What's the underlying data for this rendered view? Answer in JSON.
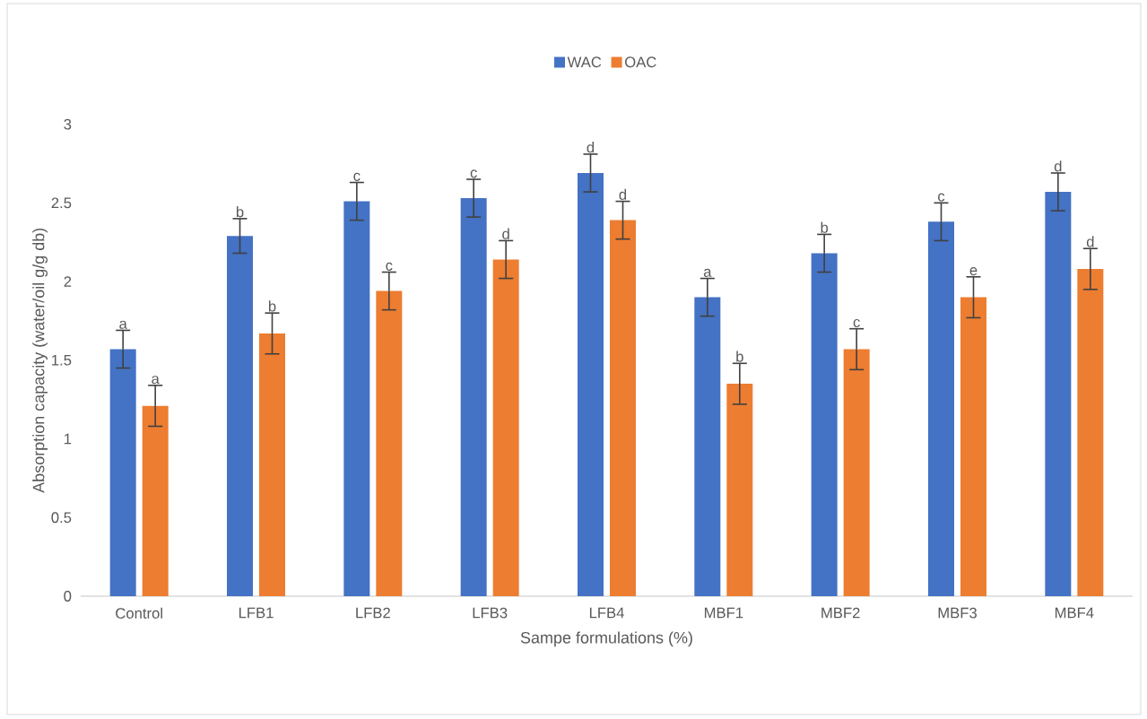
{
  "chart_data": {
    "type": "bar",
    "xlabel": "Sampe formulations (%)",
    "ylabel": "Absorption capacity (water/oil g/g db)",
    "categories": [
      "Control",
      "LFB1",
      "LFB2",
      "LFB3",
      "LFB4",
      "MBF1",
      "MBF2",
      "MBF3",
      "MBF4"
    ],
    "series": [
      {
        "name": "WAC",
        "color": "#4472c4",
        "values": [
          1.57,
          2.29,
          2.51,
          2.53,
          2.69,
          1.9,
          2.18,
          2.38,
          2.57
        ],
        "errors": [
          0.12,
          0.11,
          0.12,
          0.12,
          0.12,
          0.12,
          0.12,
          0.12,
          0.12
        ],
        "value_labels": [
          "a",
          "b",
          "c",
          "c",
          "d",
          "a",
          "b",
          "c",
          "d"
        ]
      },
      {
        "name": "OAC",
        "color": "#ed7d31",
        "values": [
          1.21,
          1.67,
          1.94,
          2.14,
          2.39,
          1.35,
          1.57,
          1.9,
          2.08
        ],
        "errors": [
          0.13,
          0.13,
          0.12,
          0.12,
          0.12,
          0.13,
          0.13,
          0.13,
          0.13
        ],
        "value_labels": [
          "a",
          "b",
          "c",
          "d",
          "d",
          "b",
          "c",
          "e",
          "d"
        ]
      }
    ],
    "ylim": [
      0,
      3
    ],
    "yticks": [
      0,
      0.5,
      1,
      1.5,
      2,
      2.5,
      3
    ],
    "legend": "top"
  }
}
